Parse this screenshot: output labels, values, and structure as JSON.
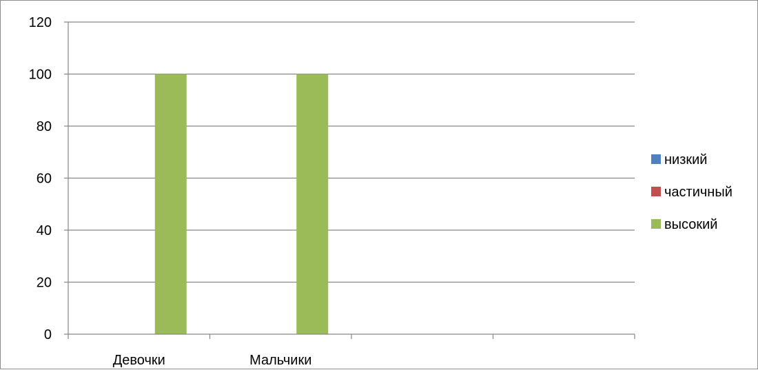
{
  "chart_data": {
    "type": "bar",
    "title": "",
    "xlabel": "",
    "ylabel": "",
    "categories": [
      "Девочки",
      "Мальчики",
      "",
      ""
    ],
    "series": [
      {
        "name": "низкий",
        "color": "#4F81BD",
        "values": [
          0,
          0,
          0,
          0
        ]
      },
      {
        "name": "частичный",
        "color": "#C0504D",
        "values": [
          0,
          0,
          0,
          0
        ]
      },
      {
        "name": "высокий",
        "color": "#9BBB59",
        "values": [
          100,
          100,
          0,
          0
        ]
      }
    ],
    "ylim": [
      0,
      120
    ],
    "yticks": [
      0,
      20,
      40,
      60,
      80,
      100,
      120
    ],
    "grid": true,
    "legend_position": "right"
  }
}
